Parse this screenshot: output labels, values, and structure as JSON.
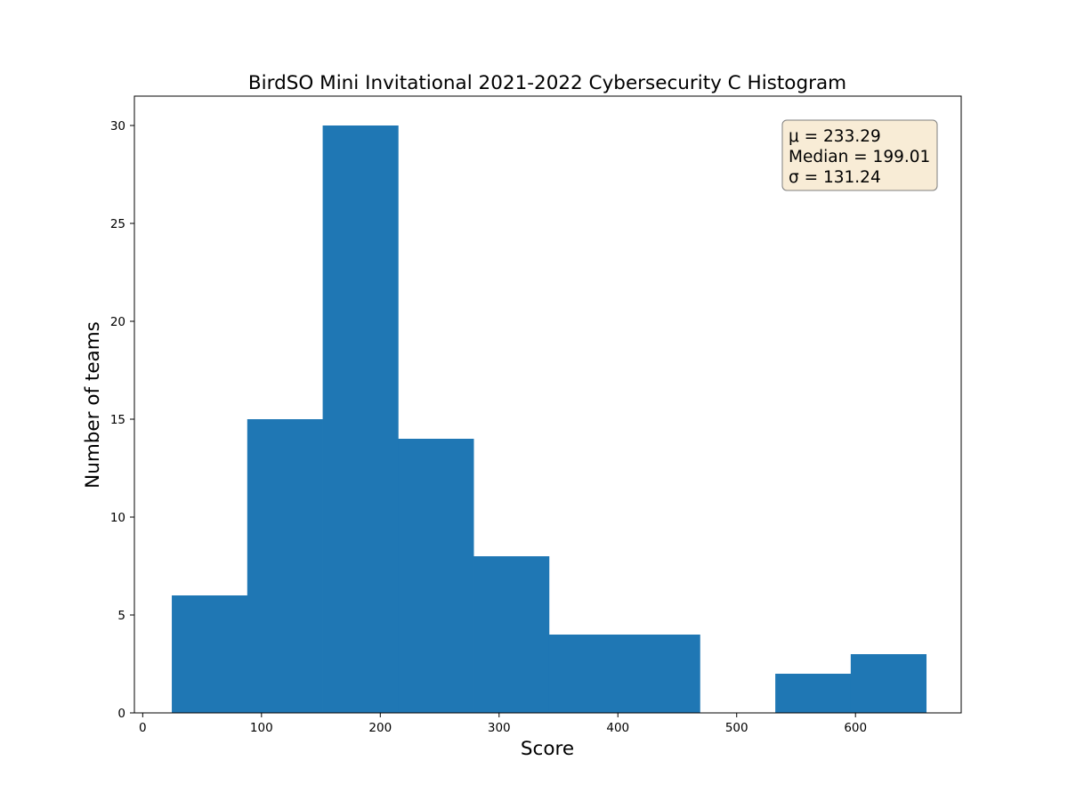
{
  "chart_data": {
    "type": "bar",
    "title": "BirdSO Mini Invitational 2021-2022 Cybersecurity C Histogram",
    "xlabel": "Score",
    "ylabel": "Number of teams",
    "xlim": [
      -7,
      689
    ],
    "ylim": [
      0,
      31.5
    ],
    "xticks": [
      "0",
      "100",
      "200",
      "300",
      "400",
      "500",
      "600"
    ],
    "yticks": [
      "0",
      "5",
      "10",
      "15",
      "20",
      "25",
      "30"
    ],
    "bin_edges": [
      24.5,
      88.0,
      151.5,
      215.0,
      278.5,
      342.0,
      405.5,
      469.0,
      532.5,
      596.0,
      659.5
    ],
    "counts": [
      6,
      15,
      30,
      14,
      8,
      4,
      4,
      0,
      2,
      3
    ],
    "bar_color": "#1f77b4",
    "grid": false,
    "stats_box": {
      "lines": [
        "μ = 233.29",
        "Median = 199.01",
        "σ = 131.24"
      ],
      "background": "#f8ecd6",
      "border": "#7f7f7f",
      "placement": "top-right"
    }
  }
}
